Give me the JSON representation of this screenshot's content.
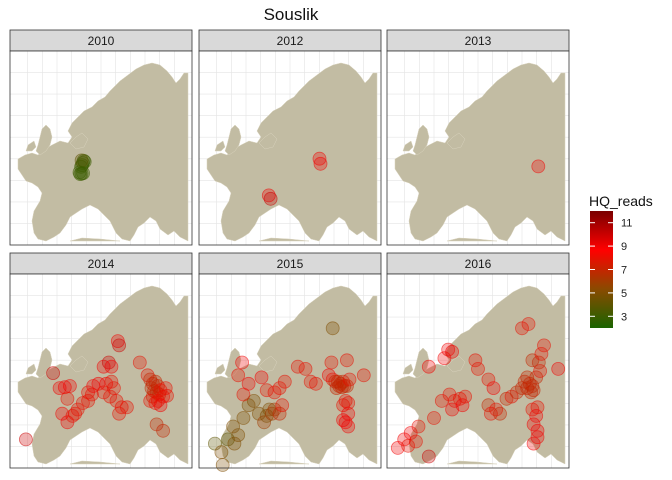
{
  "title": "Souslik",
  "panels": [
    {
      "label": "2010",
      "points": [
        [
          -1.0,
          46.5,
          3
        ],
        [
          -1.3,
          46.0,
          3
        ],
        [
          -1.7,
          45.6,
          3
        ],
        [
          -0.7,
          47.0,
          3
        ],
        [
          -0.3,
          46.8,
          3
        ],
        [
          -1.5,
          47.1,
          4
        ],
        [
          -2.0,
          43.9,
          3
        ],
        [
          -2.3,
          44.3,
          3
        ],
        [
          -1.5,
          44.0,
          3
        ],
        [
          -0.9,
          44.1,
          3
        ]
      ]
    },
    {
      "label": "2012",
      "points": [
        [
          17.4,
          47.5,
          9
        ],
        [
          17.8,
          46.3,
          9
        ],
        [
          -2.2,
          38.9,
          9
        ],
        [
          -1.5,
          38.1,
          10
        ]
      ]
    },
    {
      "label": "2013",
      "points": [
        [
          29.3,
          45.7,
          9
        ]
      ]
    },
    {
      "label": "2014",
      "points": [
        [
          -23.0,
          34.0,
          10
        ],
        [
          -12.5,
          49.5,
          10
        ],
        [
          -10.0,
          46.0,
          9
        ],
        [
          -8.0,
          46.2,
          9
        ],
        [
          -6.0,
          46.5,
          9
        ],
        [
          -7.0,
          43.5,
          8
        ],
        [
          -9.0,
          40.0,
          9
        ],
        [
          -7.0,
          38.0,
          9
        ],
        [
          -5.0,
          39.5,
          8
        ],
        [
          -4.0,
          40.0,
          8
        ],
        [
          -3.0,
          41.0,
          8
        ],
        [
          -1.0,
          42.5,
          8
        ],
        [
          1.0,
          43.0,
          8
        ],
        [
          2.5,
          44.5,
          8
        ],
        [
          1.0,
          45.0,
          8
        ],
        [
          3.0,
          46.5,
          9
        ],
        [
          5.0,
          47.0,
          9
        ],
        [
          8.0,
          47.0,
          9
        ],
        [
          10.0,
          47.5,
          8
        ],
        [
          11.0,
          46.0,
          8
        ],
        [
          7.0,
          45.0,
          8
        ],
        [
          9.5,
          44.0,
          8
        ],
        [
          12.0,
          43.0,
          8
        ],
        [
          14.0,
          41.5,
          8
        ],
        [
          13.0,
          40.0,
          8
        ],
        [
          16.0,
          41.5,
          8
        ],
        [
          7.0,
          51.0,
          9
        ],
        [
          9.0,
          52.0,
          10
        ],
        [
          10.0,
          51.0,
          9
        ],
        [
          12.5,
          57.0,
          9
        ],
        [
          13.0,
          56.0,
          10
        ],
        [
          21.0,
          52.0,
          8
        ],
        [
          24.0,
          49.0,
          8
        ],
        [
          25.0,
          48.0,
          7
        ],
        [
          26.0,
          47.0,
          7
        ],
        [
          27.0,
          47.5,
          7
        ],
        [
          28.0,
          46.5,
          7
        ],
        [
          25.5,
          46.0,
          7
        ],
        [
          26.5,
          45.3,
          7
        ],
        [
          27.5,
          45.0,
          7
        ],
        [
          28.5,
          44.5,
          7
        ],
        [
          29.0,
          45.5,
          8
        ],
        [
          26.0,
          44.0,
          7
        ],
        [
          25.0,
          43.0,
          8
        ],
        [
          27.0,
          42.5,
          8
        ],
        [
          28.0,
          43.0,
          8
        ],
        [
          30.0,
          44.0,
          8
        ],
        [
          31.0,
          46.0,
          8
        ],
        [
          31.5,
          44.2,
          8
        ],
        [
          29.0,
          42.0,
          9
        ],
        [
          27.5,
          37.5,
          7
        ],
        [
          30.0,
          36.0,
          7
        ]
      ]
    },
    {
      "label": "2015",
      "points": [
        [
          -23.0,
          33.0,
          4
        ],
        [
          -20.5,
          31.0,
          5
        ],
        [
          -20.0,
          28.0,
          5
        ],
        [
          -18.0,
          34.0,
          4
        ],
        [
          -15.5,
          33.0,
          5
        ],
        [
          -14.0,
          35.0,
          5
        ],
        [
          -16.0,
          37.0,
          5
        ],
        [
          -12.0,
          39.0,
          5
        ],
        [
          -10.0,
          42.0,
          5
        ],
        [
          -8.0,
          43.0,
          5
        ],
        [
          -6.0,
          40.0,
          5
        ],
        [
          -4.0,
          38.0,
          6
        ],
        [
          -3.0,
          39.5,
          5
        ],
        [
          -2.0,
          41.0,
          5
        ],
        [
          -1.0,
          40.0,
          6
        ],
        [
          0.0,
          41.0,
          6
        ],
        [
          2.0,
          40.0,
          7
        ],
        [
          3.0,
          42.0,
          8
        ],
        [
          0.0,
          45.0,
          8
        ],
        [
          2.0,
          46.0,
          8
        ],
        [
          4.0,
          47.5,
          8
        ],
        [
          -5.0,
          48.5,
          9
        ],
        [
          -3.0,
          45.5,
          8
        ],
        [
          -14.0,
          49.0,
          8
        ],
        [
          -12.5,
          52.0,
          9
        ],
        [
          -12.0,
          44.5,
          8
        ],
        [
          -10.0,
          47.0,
          9
        ],
        [
          14.0,
          47.5,
          8
        ],
        [
          16.0,
          47.0,
          8
        ],
        [
          9.0,
          51.0,
          8
        ],
        [
          12.0,
          50.5,
          8
        ],
        [
          21.0,
          49.0,
          9
        ],
        [
          22.5,
          48.0,
          8
        ],
        [
          23.5,
          47.5,
          7
        ],
        [
          24.5,
          47.5,
          7
        ],
        [
          25.5,
          47.0,
          7
        ],
        [
          26.5,
          47.5,
          7
        ],
        [
          25.0,
          46.5,
          7
        ],
        [
          26.0,
          46.2,
          7
        ],
        [
          27.0,
          46.5,
          7
        ],
        [
          28.0,
          46.5,
          7
        ],
        [
          24.0,
          46.0,
          7
        ],
        [
          29.0,
          48.0,
          8
        ],
        [
          22.0,
          52.0,
          8
        ],
        [
          28.0,
          52.5,
          8
        ],
        [
          34.5,
          49.0,
          8
        ],
        [
          22.5,
          60.0,
          5
        ],
        [
          28.5,
          42.5,
          8
        ],
        [
          27.5,
          43.0,
          8
        ],
        [
          26.5,
          42.0,
          8
        ],
        [
          28.5,
          40.0,
          9
        ],
        [
          26.5,
          38.5,
          9
        ],
        [
          27.5,
          38.0,
          9
        ],
        [
          28.5,
          37.0,
          9
        ]
      ]
    },
    {
      "label": "2016",
      "points": [
        [
          -25.0,
          32.0,
          9
        ],
        [
          -22.5,
          34.0,
          9
        ],
        [
          -20.0,
          35.5,
          9
        ],
        [
          -21.0,
          32.5,
          8
        ],
        [
          -17.0,
          37.0,
          8
        ],
        [
          -18.0,
          33.5,
          8
        ],
        [
          -13.0,
          30.0,
          10
        ],
        [
          -11.0,
          39.0,
          8
        ],
        [
          -8.0,
          43.0,
          8
        ],
        [
          -5.0,
          44.5,
          8
        ],
        [
          -3.0,
          43.0,
          8
        ],
        [
          -1.0,
          43.5,
          8
        ],
        [
          0.0,
          42.0,
          9
        ],
        [
          1.0,
          44.0,
          8
        ],
        [
          -4.0,
          41.0,
          9
        ],
        [
          -13.0,
          51.0,
          9
        ],
        [
          -7.0,
          53.0,
          9
        ],
        [
          -5.5,
          55.0,
          9
        ],
        [
          -4.0,
          54.5,
          9
        ],
        [
          5.0,
          52.5,
          8
        ],
        [
          6.0,
          50.5,
          8
        ],
        [
          10.0,
          48.0,
          8
        ],
        [
          12.0,
          46.0,
          9
        ],
        [
          10.0,
          42.0,
          7
        ],
        [
          13.0,
          41.0,
          8
        ],
        [
          11.0,
          40.0,
          8
        ],
        [
          14.5,
          40.0,
          7
        ],
        [
          17.0,
          43.5,
          7
        ],
        [
          19.0,
          44.0,
          8
        ],
        [
          21.0,
          45.0,
          7
        ],
        [
          23.0,
          46.0,
          7
        ],
        [
          24.0,
          47.5,
          7
        ],
        [
          25.0,
          48.5,
          7
        ],
        [
          26.0,
          47.0,
          7
        ],
        [
          27.0,
          46.5,
          7
        ],
        [
          25.0,
          46.0,
          7
        ],
        [
          26.5,
          45.0,
          7
        ],
        [
          27.5,
          45.5,
          7
        ],
        [
          28.5,
          48.5,
          7
        ],
        [
          30.0,
          50.0,
          8
        ],
        [
          29.5,
          52.0,
          7
        ],
        [
          27.0,
          52.5,
          7
        ],
        [
          30.5,
          54.0,
          8
        ],
        [
          31.5,
          56.0,
          8
        ],
        [
          23.0,
          60.0,
          8
        ],
        [
          25.5,
          61.0,
          8
        ],
        [
          37.0,
          50.5,
          9
        ],
        [
          29.0,
          41.5,
          8
        ],
        [
          27.0,
          41.0,
          8
        ],
        [
          28.5,
          39.5,
          9
        ],
        [
          27.5,
          37.5,
          9
        ],
        [
          29.0,
          36.0,
          9
        ],
        [
          27.5,
          33.0,
          9
        ],
        [
          29.0,
          34.5,
          9
        ]
      ]
    }
  ],
  "legend": {
    "title": "HQ_reads",
    "ticks": [
      "11",
      "9",
      "7",
      "5",
      "3"
    ],
    "tick_values": [
      11,
      9,
      7,
      5,
      3
    ],
    "range": [
      2,
      12
    ],
    "colors": [
      "#1a6400",
      "#8a4a00",
      "#ff0000",
      "#7a0000"
    ]
  },
  "map": {
    "land_color": "#c2bca3",
    "grid_color": "#e4e4e4",
    "strip_color": "#d9d9d9",
    "lon_range": [
      -28,
      40
    ],
    "lat_range": [
      28,
      72
    ]
  }
}
